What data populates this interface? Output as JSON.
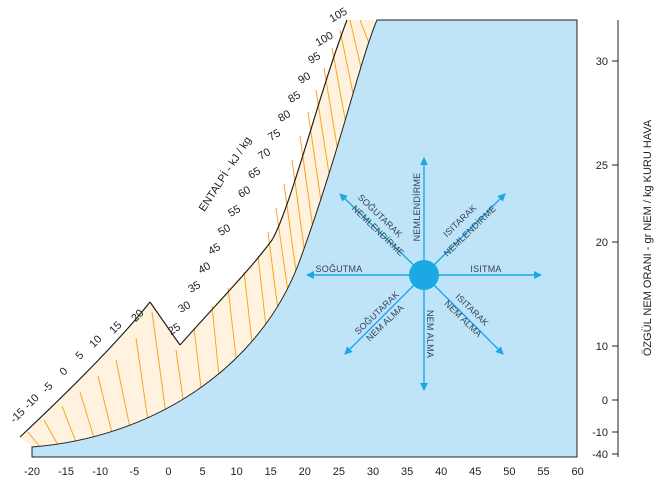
{
  "colors": {
    "region_fill": "#bfe4f8",
    "region_stroke": "#222222",
    "hatch": "#f5a623",
    "arrow": "#1ca8e3",
    "center_dot": "#1ca8e3"
  },
  "x_axis": {
    "ticks": [
      "-20",
      "-15",
      "-10",
      "-5",
      "0",
      "5",
      "10",
      "15",
      "20",
      "25",
      "30",
      "35",
      "40",
      "45",
      "50",
      "55",
      "60"
    ]
  },
  "y_axis": {
    "title": "ÖZGÜL NEM ORANI - gr NEM / kg KURU HAVA",
    "ticks": [
      "30",
      "25",
      "20",
      "10",
      "0",
      "-10",
      "-40"
    ]
  },
  "enthalpy": {
    "title": "ENTALPİ - kJ / kg",
    "lower_labels": [
      "-15",
      "-10",
      "-5",
      "0",
      "5",
      "10",
      "15",
      "20"
    ],
    "upper_labels": [
      "25",
      "30",
      "35",
      "40",
      "45",
      "50",
      "55",
      "60",
      "65",
      "70",
      "75",
      "80",
      "85",
      "90",
      "95",
      "100",
      "105"
    ]
  },
  "processes": {
    "up": "NEMLENDİRME",
    "down": "NEM ALMA",
    "left": "SOĞUTMA",
    "right": "ISITMA",
    "up_left_1": "SOĞUTARAK",
    "up_left_2": "NEMLENDİRME",
    "up_right_1": "ISITARAK",
    "up_right_2": "NEMLENDİRME",
    "down_left_1": "SOĞUTARAK",
    "down_left_2": "NEM ALMA",
    "down_right_1": "ISITARAK",
    "down_right_2": "NEM ALMA"
  }
}
